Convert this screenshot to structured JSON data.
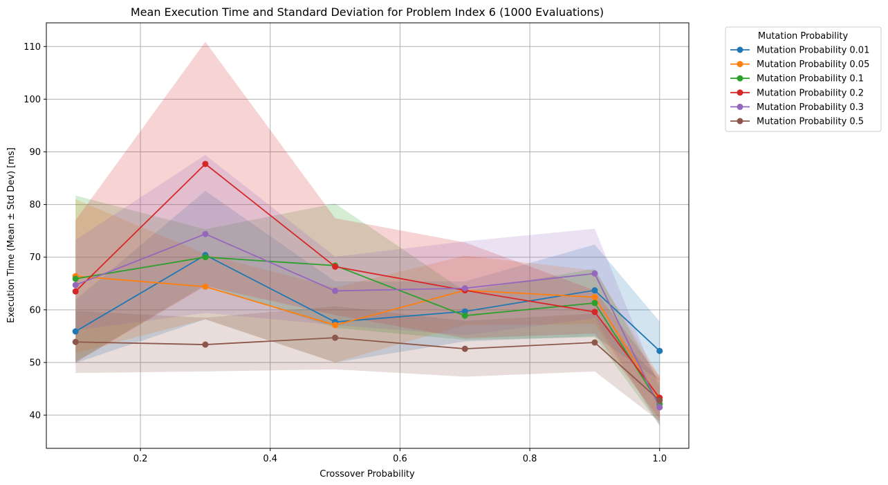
{
  "chart_data": {
    "type": "line",
    "title": "Mean Execution Time and Standard Deviation for Problem Index 6 (1000 Evaluations)",
    "xlabel": "Crossover Probability",
    "ylabel": "Execution Time (Mean ± Std Dev) [ms]",
    "x": [
      0.1,
      0.3,
      0.5,
      0.7,
      0.9,
      1.0
    ],
    "xticks": [
      "0.2",
      "0.4",
      "0.6",
      "0.8",
      "1.0"
    ],
    "yticks": [
      "40",
      "50",
      "60",
      "70",
      "80",
      "90",
      "100",
      "110"
    ],
    "xlim": [
      0.055,
      1.045
    ],
    "ylim": [
      33.7,
      114.5
    ],
    "grid": true,
    "legend_title": "Mutation Probability",
    "legend_position": "outside-top-right",
    "series": [
      {
        "name": "Mutation Probability 0.01",
        "color": "#1f77b4",
        "values": [
          55.9,
          70.4,
          57.7,
          59.7,
          63.7,
          52.2
        ],
        "std": [
          6.0,
          12.2,
          7.7,
          5.7,
          8.7,
          5.6
        ]
      },
      {
        "name": "Mutation Probability 0.05",
        "color": "#ff7f0e",
        "values": [
          66.4,
          64.4,
          57.1,
          63.7,
          62.4,
          42.9
        ],
        "std": [
          14.6,
          6.2,
          7.1,
          6.6,
          5.1,
          4.5
        ]
      },
      {
        "name": "Mutation Probability 0.1",
        "color": "#2ca02c",
        "values": [
          65.9,
          70.0,
          68.4,
          58.9,
          61.3,
          42.1
        ],
        "std": [
          15.8,
          5.3,
          11.8,
          4.6,
          6.5,
          4.0
        ]
      },
      {
        "name": "Mutation Probability 0.2",
        "color": "#d62728",
        "values": [
          63.5,
          87.7,
          68.2,
          63.7,
          59.6,
          43.3
        ],
        "std": [
          13.5,
          23.2,
          9.2,
          9.1,
          4.1,
          4.0
        ]
      },
      {
        "name": "Mutation Probability 0.3",
        "color": "#9467bd",
        "values": [
          64.7,
          74.4,
          63.6,
          64.1,
          66.9,
          41.5
        ],
        "std": [
          8.6,
          15.0,
          6.5,
          8.9,
          8.5,
          3.6
        ]
      },
      {
        "name": "Mutation Probability 0.5",
        "color": "#8c564b",
        "values": [
          53.9,
          53.4,
          54.7,
          52.6,
          53.8,
          42.8
        ],
        "std": [
          5.9,
          5.1,
          6.0,
          5.3,
          5.5,
          4.0
        ]
      }
    ]
  }
}
